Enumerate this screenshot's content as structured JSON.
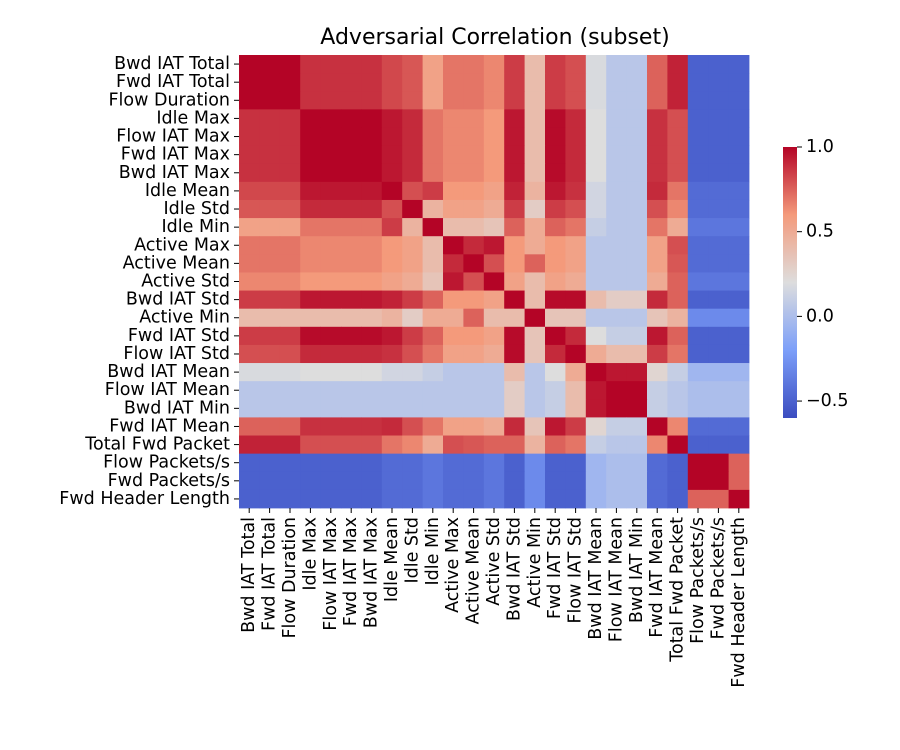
{
  "chart_data": {
    "type": "heatmap",
    "title": "Adversarial Correlation (subset)",
    "labels": [
      "Bwd IAT Total",
      "Fwd IAT Total",
      "Flow Duration",
      "Idle Max",
      "Flow IAT Max",
      "Fwd IAT Max",
      "Bwd IAT Max",
      "Idle Mean",
      "Idle Std",
      "Idle Min",
      "Active Max",
      "Active Mean",
      "Active Std",
      "Bwd IAT Std",
      "Active Min",
      "Fwd IAT Std",
      "Flow IAT Std",
      "Bwd IAT Mean",
      "Flow IAT Mean",
      "Bwd IAT Min",
      "Fwd IAT Mean",
      "Total Fwd Packet",
      "Flow Packets/s",
      "Fwd Packets/s",
      "Fwd Header Length"
    ],
    "colormap": "coolwarm",
    "vmin": -0.6,
    "vmax": 1.0,
    "colorbar_ticks": [
      1.0,
      0.5,
      0.0,
      -0.5
    ],
    "colorbar_tick_labels": [
      "1.0",
      "0.5",
      "0.0",
      "−0.5"
    ],
    "values": [
      [
        1.0,
        1.0,
        1.0,
        0.88,
        0.88,
        0.88,
        0.88,
        0.82,
        0.78,
        0.55,
        0.7,
        0.7,
        0.65,
        0.85,
        0.4,
        0.85,
        0.8,
        0.18,
        0.05,
        0.05,
        0.75,
        0.92,
        -0.5,
        -0.5,
        -0.5
      ],
      [
        1.0,
        1.0,
        1.0,
        0.88,
        0.88,
        0.88,
        0.88,
        0.82,
        0.78,
        0.55,
        0.7,
        0.7,
        0.65,
        0.85,
        0.4,
        0.85,
        0.8,
        0.18,
        0.05,
        0.05,
        0.75,
        0.92,
        -0.5,
        -0.5,
        -0.5
      ],
      [
        1.0,
        1.0,
        1.0,
        0.88,
        0.88,
        0.88,
        0.88,
        0.82,
        0.78,
        0.55,
        0.7,
        0.7,
        0.65,
        0.85,
        0.4,
        0.85,
        0.8,
        0.18,
        0.05,
        0.05,
        0.75,
        0.92,
        -0.5,
        -0.5,
        -0.5
      ],
      [
        0.88,
        0.88,
        0.88,
        1.0,
        1.0,
        1.0,
        1.0,
        0.95,
        0.9,
        0.7,
        0.65,
        0.65,
        0.6,
        0.95,
        0.4,
        0.98,
        0.9,
        0.2,
        0.05,
        0.05,
        0.88,
        0.8,
        -0.5,
        -0.5,
        -0.5
      ],
      [
        0.88,
        0.88,
        0.88,
        1.0,
        1.0,
        1.0,
        1.0,
        0.95,
        0.9,
        0.7,
        0.65,
        0.65,
        0.6,
        0.95,
        0.4,
        0.98,
        0.9,
        0.2,
        0.05,
        0.05,
        0.88,
        0.8,
        -0.5,
        -0.5,
        -0.5
      ],
      [
        0.88,
        0.88,
        0.88,
        1.0,
        1.0,
        1.0,
        1.0,
        0.95,
        0.9,
        0.7,
        0.65,
        0.65,
        0.6,
        0.95,
        0.4,
        0.98,
        0.9,
        0.2,
        0.05,
        0.05,
        0.88,
        0.8,
        -0.5,
        -0.5,
        -0.5
      ],
      [
        0.88,
        0.88,
        0.88,
        1.0,
        1.0,
        1.0,
        1.0,
        0.95,
        0.9,
        0.7,
        0.65,
        0.65,
        0.6,
        0.95,
        0.4,
        0.98,
        0.9,
        0.2,
        0.05,
        0.05,
        0.88,
        0.8,
        -0.5,
        -0.5,
        -0.5
      ],
      [
        0.82,
        0.82,
        0.82,
        0.95,
        0.95,
        0.95,
        0.95,
        1.0,
        0.8,
        0.85,
        0.6,
        0.6,
        0.55,
        0.92,
        0.45,
        0.95,
        0.88,
        0.15,
        0.05,
        0.05,
        0.9,
        0.7,
        -0.45,
        -0.45,
        -0.45
      ],
      [
        0.78,
        0.78,
        0.78,
        0.9,
        0.9,
        0.9,
        0.9,
        0.8,
        1.0,
        0.45,
        0.55,
        0.55,
        0.5,
        0.85,
        0.3,
        0.85,
        0.8,
        0.15,
        0.05,
        0.05,
        0.8,
        0.65,
        -0.45,
        -0.45,
        -0.45
      ],
      [
        0.55,
        0.55,
        0.55,
        0.7,
        0.7,
        0.7,
        0.7,
        0.85,
        0.45,
        1.0,
        0.4,
        0.4,
        0.35,
        0.75,
        0.5,
        0.75,
        0.7,
        0.1,
        0.05,
        0.05,
        0.7,
        0.5,
        -0.4,
        -0.4,
        -0.4
      ],
      [
        0.7,
        0.7,
        0.7,
        0.65,
        0.65,
        0.65,
        0.65,
        0.6,
        0.55,
        0.4,
        1.0,
        0.9,
        0.95,
        0.6,
        0.5,
        0.6,
        0.55,
        0.05,
        0.05,
        0.05,
        0.55,
        0.8,
        -0.45,
        -0.45,
        -0.45
      ],
      [
        0.7,
        0.7,
        0.7,
        0.65,
        0.65,
        0.65,
        0.65,
        0.6,
        0.55,
        0.4,
        0.9,
        1.0,
        0.8,
        0.6,
        0.75,
        0.6,
        0.55,
        0.05,
        0.05,
        0.05,
        0.55,
        0.78,
        -0.45,
        -0.45,
        -0.45
      ],
      [
        0.65,
        0.65,
        0.65,
        0.6,
        0.6,
        0.6,
        0.6,
        0.55,
        0.5,
        0.35,
        0.95,
        0.8,
        1.0,
        0.55,
        0.4,
        0.55,
        0.5,
        0.05,
        0.05,
        0.05,
        0.5,
        0.75,
        -0.4,
        -0.4,
        -0.4
      ],
      [
        0.85,
        0.85,
        0.85,
        0.95,
        0.95,
        0.95,
        0.95,
        0.92,
        0.85,
        0.75,
        0.6,
        0.6,
        0.55,
        1.0,
        0.4,
        0.98,
        0.98,
        0.4,
        0.3,
        0.3,
        0.9,
        0.75,
        -0.5,
        -0.5,
        -0.5
      ],
      [
        0.4,
        0.4,
        0.4,
        0.4,
        0.4,
        0.4,
        0.4,
        0.45,
        0.3,
        0.5,
        0.5,
        0.75,
        0.4,
        0.4,
        1.0,
        0.35,
        0.35,
        0.05,
        0.05,
        0.05,
        0.35,
        0.45,
        -0.3,
        -0.3,
        -0.3
      ],
      [
        0.85,
        0.85,
        0.85,
        0.98,
        0.98,
        0.98,
        0.98,
        0.95,
        0.85,
        0.75,
        0.6,
        0.6,
        0.55,
        0.98,
        0.35,
        1.0,
        0.9,
        0.2,
        0.1,
        0.1,
        0.95,
        0.75,
        -0.5,
        -0.5,
        -0.5
      ],
      [
        0.8,
        0.8,
        0.8,
        0.9,
        0.9,
        0.9,
        0.9,
        0.88,
        0.8,
        0.7,
        0.55,
        0.55,
        0.5,
        0.98,
        0.35,
        0.9,
        1.0,
        0.5,
        0.4,
        0.4,
        0.85,
        0.7,
        -0.5,
        -0.5,
        -0.5
      ],
      [
        0.18,
        0.18,
        0.18,
        0.2,
        0.2,
        0.2,
        0.2,
        0.15,
        0.15,
        0.1,
        0.05,
        0.05,
        0.05,
        0.4,
        0.05,
        0.2,
        0.5,
        1.0,
        0.95,
        0.95,
        0.25,
        0.1,
        -0.05,
        -0.05,
        -0.05
      ],
      [
        0.05,
        0.05,
        0.05,
        0.05,
        0.05,
        0.05,
        0.05,
        0.05,
        0.05,
        0.05,
        0.05,
        0.05,
        0.05,
        0.3,
        0.05,
        0.1,
        0.4,
        0.95,
        1.0,
        1.0,
        0.1,
        0.05,
        0.0,
        0.0,
        0.0
      ],
      [
        0.05,
        0.05,
        0.05,
        0.05,
        0.05,
        0.05,
        0.05,
        0.05,
        0.05,
        0.05,
        0.05,
        0.05,
        0.05,
        0.3,
        0.05,
        0.1,
        0.4,
        0.95,
        1.0,
        1.0,
        0.1,
        0.05,
        0.0,
        0.0,
        0.0
      ],
      [
        0.75,
        0.75,
        0.75,
        0.88,
        0.88,
        0.88,
        0.88,
        0.9,
        0.8,
        0.7,
        0.55,
        0.55,
        0.5,
        0.9,
        0.35,
        0.95,
        0.85,
        0.25,
        0.1,
        0.1,
        1.0,
        0.65,
        -0.45,
        -0.45,
        -0.45
      ],
      [
        0.92,
        0.92,
        0.92,
        0.8,
        0.8,
        0.8,
        0.8,
        0.7,
        0.65,
        0.5,
        0.8,
        0.78,
        0.75,
        0.75,
        0.45,
        0.75,
        0.7,
        0.1,
        0.05,
        0.05,
        0.65,
        1.0,
        -0.5,
        -0.5,
        -0.5
      ],
      [
        -0.5,
        -0.5,
        -0.5,
        -0.5,
        -0.5,
        -0.5,
        -0.5,
        -0.45,
        -0.45,
        -0.4,
        -0.45,
        -0.45,
        -0.4,
        -0.5,
        -0.3,
        -0.5,
        -0.5,
        -0.05,
        0.0,
        0.0,
        -0.45,
        -0.5,
        1.0,
        1.0,
        0.75
      ],
      [
        -0.5,
        -0.5,
        -0.5,
        -0.5,
        -0.5,
        -0.5,
        -0.5,
        -0.45,
        -0.45,
        -0.4,
        -0.45,
        -0.45,
        -0.4,
        -0.5,
        -0.3,
        -0.5,
        -0.5,
        -0.05,
        0.0,
        0.0,
        -0.45,
        -0.5,
        1.0,
        1.0,
        0.75
      ],
      [
        -0.5,
        -0.5,
        -0.5,
        -0.5,
        -0.5,
        -0.5,
        -0.5,
        -0.45,
        -0.45,
        -0.4,
        -0.45,
        -0.45,
        -0.4,
        -0.5,
        -0.3,
        -0.5,
        -0.5,
        -0.05,
        0.0,
        0.0,
        -0.45,
        -0.5,
        0.75,
        0.75,
        1.0
      ]
    ]
  }
}
